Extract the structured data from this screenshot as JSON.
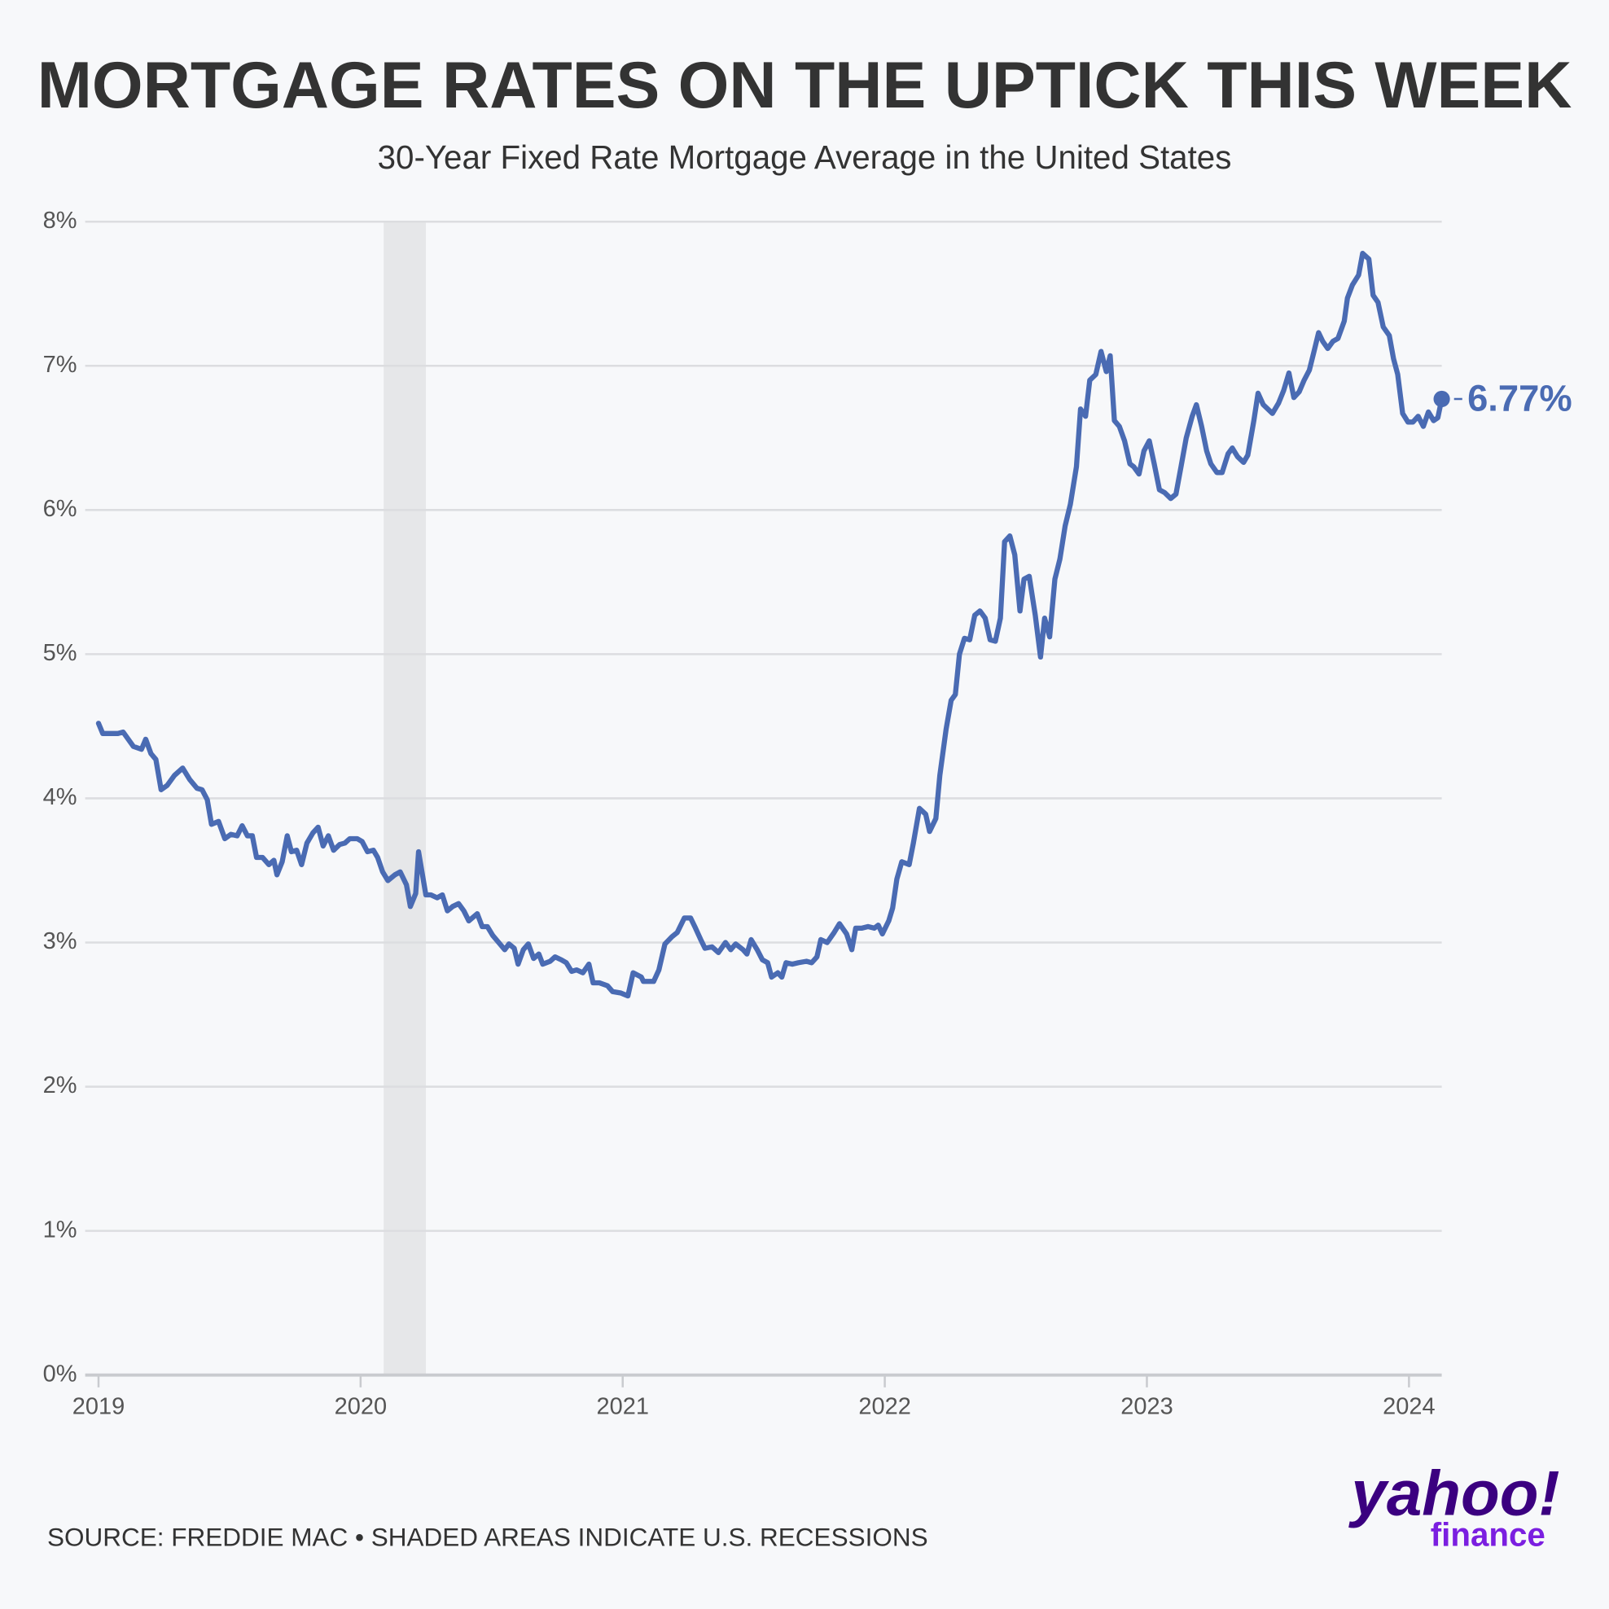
{
  "chart_data": {
    "type": "line",
    "title": "MORTGAGE RATES ON THE UPTICK THIS WEEK",
    "subtitle": "30-Year Fixed Rate Mortgage Average in the United States",
    "source": "SOURCE: FREDDIE MAC • SHADED AREAS INDICATE U.S. RECESSIONS",
    "logo": {
      "brand": "yahoo!",
      "product": "finance"
    },
    "color": "#4a6bb3",
    "end_label": "6.77%",
    "recessions": [
      [
        2020.088,
        2020.249
      ]
    ],
    "xlim": [
      2019,
      2024.125
    ],
    "xticks": [
      2019,
      2020,
      2021,
      2022,
      2023,
      2024
    ],
    "ylim": [
      0,
      8
    ],
    "yticks": [
      {
        "value": 0,
        "label": "0%"
      },
      {
        "value": 1,
        "label": "1%"
      },
      {
        "value": 2,
        "label": "2%"
      },
      {
        "value": 3,
        "label": "3%"
      },
      {
        "value": 4,
        "label": "4%"
      },
      {
        "value": 5,
        "label": "5%"
      },
      {
        "value": 6,
        "label": "6%"
      },
      {
        "value": 7,
        "label": "7%"
      },
      {
        "value": 8,
        "label": "8%"
      }
    ],
    "grid": true,
    "x": [
      2019.0,
      2019.016,
      2019.074,
      2019.094,
      2019.133,
      2019.164,
      2019.18,
      2019.2,
      2019.219,
      2019.239,
      2019.262,
      2019.29,
      2019.321,
      2019.348,
      2019.376,
      2019.395,
      2019.415,
      2019.431,
      2019.458,
      2019.482,
      2019.505,
      2019.529,
      2019.548,
      2019.568,
      2019.587,
      2019.603,
      2019.626,
      2019.65,
      2019.669,
      2019.681,
      2019.701,
      2019.72,
      2019.736,
      2019.756,
      2019.775,
      2019.795,
      2019.818,
      2019.838,
      2019.857,
      2019.877,
      2019.897,
      2019.92,
      2019.94,
      2019.959,
      2019.987,
      2020.006,
      2020.026,
      2020.049,
      2020.065,
      2020.084,
      2020.104,
      2020.131,
      2020.151,
      2020.175,
      2020.19,
      2020.21,
      2020.221,
      2020.249,
      2020.268,
      2020.292,
      2020.312,
      2020.331,
      2020.351,
      2020.374,
      2020.394,
      2020.413,
      2020.445,
      2020.464,
      2020.484,
      2020.504,
      2020.527,
      2020.55,
      2020.566,
      2020.586,
      2020.601,
      2020.621,
      2020.64,
      2020.66,
      2020.68,
      2020.695,
      2020.723,
      2020.742,
      2020.766,
      2020.785,
      2020.805,
      2020.824,
      2020.848,
      2020.871,
      2020.887,
      2020.911,
      2020.942,
      2020.961,
      2020.993,
      2021.02,
      2021.04,
      2021.071,
      2021.079,
      2021.118,
      2021.138,
      2021.161,
      2021.188,
      2021.208,
      2021.235,
      2021.259,
      2021.275,
      2021.298,
      2021.314,
      2021.341,
      2021.365,
      2021.392,
      2021.412,
      2021.431,
      2021.459,
      2021.474,
      2021.49,
      2021.513,
      2021.533,
      2021.553,
      2021.568,
      2021.592,
      2021.607,
      2021.623,
      2021.647,
      2021.67,
      2021.701,
      2021.721,
      2021.741,
      2021.756,
      2021.78,
      2021.807,
      2021.827,
      2021.854,
      2021.874,
      2021.889,
      2021.913,
      2021.936,
      2021.96,
      2021.975,
      2021.991,
      2022.015,
      2022.03,
      2022.046,
      2022.065,
      2022.093,
      2022.109,
      2022.132,
      2022.156,
      2022.171,
      2022.195,
      2022.21,
      2022.234,
      2022.253,
      2022.269,
      2022.285,
      2022.304,
      2022.324,
      2022.343,
      2022.363,
      2022.383,
      2022.402,
      2022.422,
      2022.441,
      2022.457,
      2022.477,
      2022.496,
      2022.516,
      2022.531,
      2022.551,
      2022.574,
      2022.594,
      2022.61,
      2022.629,
      2022.649,
      2022.668,
      2022.688,
      2022.708,
      2022.731,
      2022.747,
      2022.766,
      2022.782,
      2022.805,
      2022.825,
      2022.845,
      2022.86,
      2022.876,
      2022.895,
      2022.915,
      2022.935,
      2022.95,
      2022.97,
      2022.989,
      2023.009,
      2023.028,
      2023.048,
      2023.068,
      2023.091,
      2023.111,
      2023.13,
      2023.15,
      2023.173,
      2023.189,
      2023.209,
      2023.228,
      2023.244,
      2023.267,
      2023.287,
      2023.31,
      2023.326,
      2023.346,
      2023.369,
      2023.385,
      2023.408,
      2023.424,
      2023.444,
      2023.479,
      2023.502,
      2023.522,
      2023.542,
      2023.561,
      2023.581,
      2023.6,
      2023.62,
      2023.639,
      2023.655,
      2023.671,
      2023.69,
      2023.71,
      2023.729,
      2023.753,
      2023.765,
      2023.784,
      2023.808,
      2023.823,
      2023.847,
      2023.863,
      2023.882,
      2023.902,
      2023.925,
      2023.941,
      2023.957,
      2023.976,
      2023.996,
      2024.015,
      2024.035,
      2024.055,
      2024.074,
      2024.094,
      2024.11,
      2024.125
    ],
    "values": [
      4.52,
      4.45,
      4.45,
      4.46,
      4.36,
      4.34,
      4.41,
      4.31,
      4.27,
      4.06,
      4.09,
      4.16,
      4.21,
      4.13,
      4.07,
      4.06,
      3.99,
      3.82,
      3.84,
      3.72,
      3.75,
      3.74,
      3.81,
      3.74,
      3.74,
      3.59,
      3.59,
      3.54,
      3.57,
      3.47,
      3.56,
      3.74,
      3.63,
      3.64,
      3.54,
      3.69,
      3.76,
      3.8,
      3.67,
      3.74,
      3.64,
      3.68,
      3.69,
      3.72,
      3.72,
      3.7,
      3.63,
      3.64,
      3.59,
      3.49,
      3.43,
      3.47,
      3.49,
      3.4,
      3.25,
      3.34,
      3.63,
      3.33,
      3.33,
      3.31,
      3.33,
      3.22,
      3.25,
      3.27,
      3.22,
      3.15,
      3.2,
      3.11,
      3.11,
      3.05,
      3.0,
      2.95,
      2.99,
      2.96,
      2.85,
      2.95,
      2.99,
      2.89,
      2.92,
      2.85,
      2.87,
      2.9,
      2.88,
      2.86,
      2.8,
      2.81,
      2.79,
      2.85,
      2.72,
      2.72,
      2.7,
      2.66,
      2.65,
      2.63,
      2.79,
      2.76,
      2.73,
      2.73,
      2.81,
      2.99,
      3.04,
      3.07,
      3.17,
      3.17,
      3.11,
      3.02,
      2.96,
      2.97,
      2.93,
      3.0,
      2.95,
      2.99,
      2.95,
      2.92,
      3.02,
      2.95,
      2.88,
      2.86,
      2.76,
      2.79,
      2.76,
      2.86,
      2.85,
      2.86,
      2.87,
      2.86,
      2.9,
      3.02,
      3.0,
      3.07,
      3.13,
      3.06,
      2.95,
      3.1,
      3.1,
      3.11,
      3.1,
      3.12,
      3.06,
      3.15,
      3.24,
      3.44,
      3.56,
      3.54,
      3.69,
      3.93,
      3.89,
      3.77,
      3.86,
      4.16,
      4.48,
      4.68,
      4.72,
      5.0,
      5.11,
      5.1,
      5.27,
      5.3,
      5.25,
      5.1,
      5.09,
      5.25,
      5.78,
      5.82,
      5.69,
      5.3,
      5.52,
      5.54,
      5.27,
      4.98,
      5.25,
      5.12,
      5.52,
      5.66,
      5.89,
      6.04,
      6.3,
      6.7,
      6.65,
      6.9,
      6.94,
      7.1,
      6.96,
      7.07,
      6.62,
      6.58,
      6.48,
      6.32,
      6.3,
      6.25,
      6.41,
      6.48,
      6.32,
      6.14,
      6.12,
      6.08,
      6.11,
      6.3,
      6.5,
      6.65,
      6.73,
      6.58,
      6.41,
      6.32,
      6.26,
      6.26,
      6.39,
      6.43,
      6.37,
      6.33,
      6.38,
      6.62,
      6.81,
      6.73,
      6.67,
      6.74,
      6.83,
      6.95,
      6.78,
      6.82,
      6.9,
      6.97,
      7.11,
      7.23,
      7.17,
      7.12,
      7.17,
      7.19,
      7.31,
      7.47,
      7.56,
      7.63,
      7.78,
      7.74,
      7.49,
      7.44,
      7.27,
      7.21,
      7.05,
      6.94,
      6.67,
      6.61,
      6.61,
      6.65,
      6.58,
      6.68,
      6.62,
      6.64,
      6.77
    ]
  }
}
